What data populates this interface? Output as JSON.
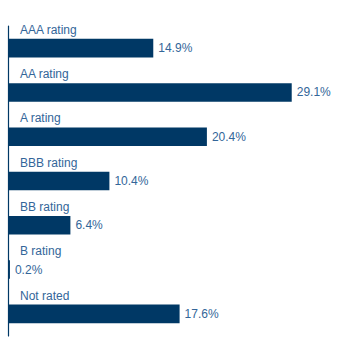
{
  "chart_data": {
    "type": "bar",
    "orientation": "horizontal",
    "categories": [
      "AAA rating",
      "AA rating",
      "A rating",
      "BBB rating",
      "BB rating",
      "B rating",
      "Not rated"
    ],
    "values": [
      14.9,
      29.1,
      20.4,
      10.4,
      6.4,
      0.2,
      17.6
    ],
    "value_labels": [
      "14.9%",
      "29.1%",
      "20.4%",
      "10.4%",
      "6.4%",
      "0.2%",
      "17.6%"
    ],
    "data_labels": true,
    "color": "#003865",
    "xlim": [
      0,
      32
    ],
    "grid": false,
    "tick_labels": "y"
  }
}
